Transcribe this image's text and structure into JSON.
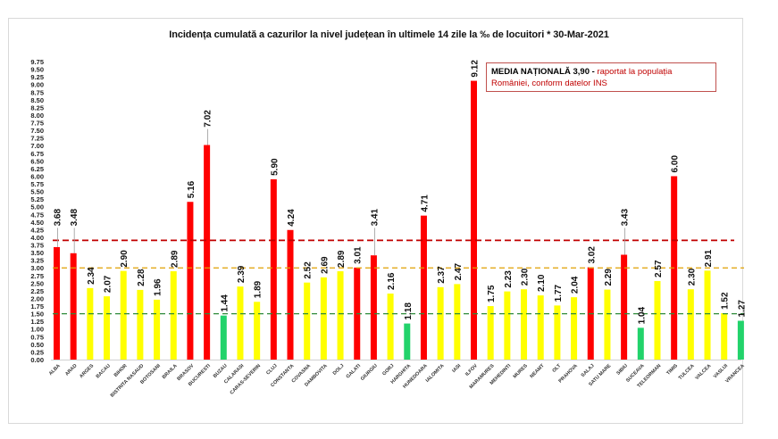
{
  "chart_data": {
    "type": "bar",
    "title": "Incidența cumulată a cazurilor la nivel județean în ultimele 14 zile la ‰ de locuitori * 30-Mar-2021",
    "xlabel": "",
    "ylabel": "",
    "ylim": [
      0,
      9.75
    ],
    "ytick_step": 0.25,
    "grid": false,
    "categories": [
      "ALBA",
      "ARAD",
      "ARGES",
      "BACAU",
      "BIHOR",
      "BISTRITA NASAUD",
      "BOTOSANI",
      "BRAILA",
      "BRASOV",
      "BUCURESTI",
      "BUZAU",
      "CALARASI",
      "CARAS-SEVERIN",
      "CLUJ",
      "CONSTANTA",
      "COVASNA",
      "DAMBOVITA",
      "DOLJ",
      "GALATI",
      "GIURGIU",
      "GORJ",
      "HARGHITA",
      "HUNEDOARA",
      "IALOMITA",
      "IASI",
      "ILFOV",
      "MARAMURES",
      "MEHEDINTI",
      "MURES",
      "NEAMT",
      "OLT",
      "PRAHOVA",
      "SALAJ",
      "SATU MARE",
      "SIBIU",
      "SUCEAVA",
      "TELEORMAN",
      "TIMIS",
      "TULCEA",
      "VALCEA",
      "VASLUI",
      "VRANCEA"
    ],
    "values": [
      3.68,
      3.48,
      2.34,
      2.07,
      2.9,
      2.28,
      1.96,
      2.89,
      5.16,
      7.02,
      1.44,
      2.39,
      1.89,
      5.9,
      4.24,
      2.52,
      2.69,
      2.89,
      3.01,
      3.41,
      2.16,
      1.18,
      4.71,
      2.37,
      2.47,
      9.12,
      1.75,
      2.23,
      2.3,
      2.1,
      1.77,
      2.04,
      3.02,
      2.29,
      3.43,
      1.04,
      2.57,
      6.0,
      2.3,
      2.91,
      1.52,
      1.27
    ],
    "value_labels": [
      "3.68",
      "3.48",
      "2.34",
      "2.07",
      "2.90",
      "2.28",
      "1.96",
      "2.89",
      "5.16",
      "7.02",
      "1.44",
      "2.39",
      "1.89",
      "5.90",
      "4.24",
      "2.52",
      "2.69",
      "2.89",
      "3.01",
      "3.41",
      "2.16",
      "1.18",
      "4.71",
      "2.37",
      "2.47",
      "9.12",
      "1.75",
      "2.23",
      "2.30",
      "2.10",
      "1.77",
      "2.04",
      "3.02",
      "2.29",
      "3.43",
      "1.04",
      "2.57",
      "6.00",
      "2.30",
      "2.91",
      "1.52",
      "1.27"
    ],
    "color_thresholds": {
      "red_above": 3.0,
      "yellow_above": 1.5,
      "colors": {
        "red": "#ff0000",
        "yellow": "#ffff00",
        "green": "#22d36b"
      }
    },
    "reference_lines": [
      {
        "name": "national-average",
        "value": 3.9,
        "color": "#c00000",
        "style": "dashed"
      },
      {
        "name": "threshold-3",
        "value": 3.0,
        "color": "#e0a000",
        "style": "dashed"
      },
      {
        "name": "threshold-1-5",
        "value": 1.5,
        "color": "#2e8b3a",
        "style": "dashed"
      }
    ],
    "annotation": {
      "label_bold": "MEDIA NAȚIONALĂ",
      "value": "3,90",
      "dash": " - ",
      "text": "raportat la populația României, conform datelor INS"
    }
  }
}
